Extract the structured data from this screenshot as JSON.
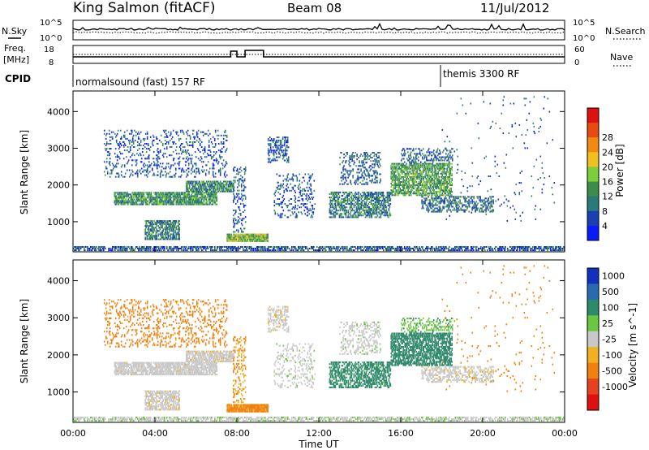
{
  "header": {
    "station": "King Salmon (fitACF)",
    "beam": "Beam 08",
    "date": "11/Jul/2012"
  },
  "noise_panel": {
    "left_label": "N.Sky",
    "right_label": "N.Search",
    "left_ticks": [
      "10^5",
      "10^0"
    ],
    "right_ticks": [
      "10^5",
      "10^0"
    ]
  },
  "freq_panel": {
    "left_label_1": "Freq.",
    "left_label_2": "[MHz]",
    "right_label": "Nave",
    "left_ticks": [
      "18",
      "8"
    ],
    "right_ticks": [
      "60",
      "0"
    ]
  },
  "cpid_panel": {
    "label": "CPID",
    "programs": [
      {
        "name": "normalsound (fast) 157 RF",
        "start_hour": 0
      },
      {
        "name": "themis 3300 RF",
        "start_hour": 18
      }
    ]
  },
  "power_panel": {
    "ylabel": "Slant Range [km]",
    "cbar_label": "Power [dB]",
    "cbar_ticks": [
      "4",
      "8",
      "12",
      "16",
      "20",
      "24",
      "28"
    ],
    "cbar_colors": [
      "#0a1aff",
      "#1a3fb0",
      "#2a7a7a",
      "#3e8c4a",
      "#7ccf3a",
      "#f0c020",
      "#f08a10",
      "#e84a10",
      "#e01010"
    ]
  },
  "velocity_panel": {
    "ylabel": "Slant Range [km]",
    "cbar_label": "Velocity [m s^-1]",
    "cbar_ticks": [
      "1000",
      "500",
      "100",
      "25",
      "-25",
      "-100",
      "-500",
      "-1000"
    ],
    "cbar_colors": [
      "#1030c0",
      "#2a6ab0",
      "#2e8a6a",
      "#6ac840",
      "#c8c8c8",
      "#f0b020",
      "#f08010",
      "#e84020",
      "#e01010"
    ]
  },
  "x_axis": {
    "label": "Time UT",
    "ticks": [
      "00:00",
      "04:00",
      "08:00",
      "12:00",
      "16:00",
      "20:00",
      "00:00"
    ]
  },
  "chart_data": {
    "type": "heatmap",
    "title": "King Salmon (fitACF)",
    "xlabel": "Time UT",
    "ylabel": "Slant Range [km]",
    "xlim_hours": [
      0,
      24
    ],
    "ylim_km": [
      180,
      4560
    ],
    "yticks_km": [
      1000,
      2000,
      3000,
      4000
    ],
    "power_range_db": [
      0,
      30
    ],
    "velocity_range_ms": [
      -1000,
      1000
    ],
    "echo_regions": [
      {
        "t0": 0.0,
        "t1": 24.0,
        "r0": 200,
        "r1": 320,
        "density": 0.55,
        "power": 6,
        "velocity": 15
      },
      {
        "t0": 2.0,
        "t1": 7.0,
        "r0": 1450,
        "r1": 1800,
        "density": 0.75,
        "power": 11,
        "velocity": -5
      },
      {
        "t0": 5.5,
        "t1": 7.8,
        "r0": 1800,
        "r1": 2100,
        "density": 0.7,
        "power": 10,
        "velocity": -10
      },
      {
        "t0": 1.5,
        "t1": 7.5,
        "r0": 2200,
        "r1": 3500,
        "density": 0.16,
        "power": 6,
        "velocity": -180
      },
      {
        "t0": 3.5,
        "t1": 5.2,
        "r0": 500,
        "r1": 1000,
        "density": 0.6,
        "power": 9,
        "velocity": -10
      },
      {
        "t0": 7.5,
        "t1": 9.5,
        "r0": 450,
        "r1": 650,
        "density": 0.9,
        "power": 14,
        "velocity": -130
      },
      {
        "t0": 7.8,
        "t1": 8.4,
        "r0": 700,
        "r1": 2500,
        "density": 0.22,
        "power": 7,
        "velocity": -100
      },
      {
        "t0": 9.5,
        "t1": 10.5,
        "r0": 2600,
        "r1": 3300,
        "density": 0.35,
        "power": 6,
        "velocity": -10
      },
      {
        "t0": 9.8,
        "t1": 11.8,
        "r0": 1100,
        "r1": 2300,
        "density": 0.18,
        "power": 6,
        "velocity": 10
      },
      {
        "t0": 12.5,
        "t1": 15.5,
        "r0": 1100,
        "r1": 1800,
        "density": 0.5,
        "power": 9,
        "velocity": 180
      },
      {
        "t0": 13.0,
        "t1": 15.0,
        "r0": 2000,
        "r1": 2900,
        "density": 0.22,
        "power": 7,
        "velocity": 10
      },
      {
        "t0": 15.5,
        "t1": 18.5,
        "r0": 1700,
        "r1": 2600,
        "density": 0.6,
        "power": 12,
        "velocity": 280
      },
      {
        "t0": 16.0,
        "t1": 18.5,
        "r0": 2600,
        "r1": 3000,
        "density": 0.25,
        "power": 7,
        "velocity": 80
      },
      {
        "t0": 17.0,
        "t1": 20.5,
        "r0": 1250,
        "r1": 1700,
        "density": 0.4,
        "power": 8,
        "velocity": -10
      },
      {
        "t0": 18.0,
        "t1": 23.5,
        "r0": 1000,
        "r1": 4400,
        "density": 0.015,
        "power": 6,
        "velocity": -300
      }
    ]
  }
}
